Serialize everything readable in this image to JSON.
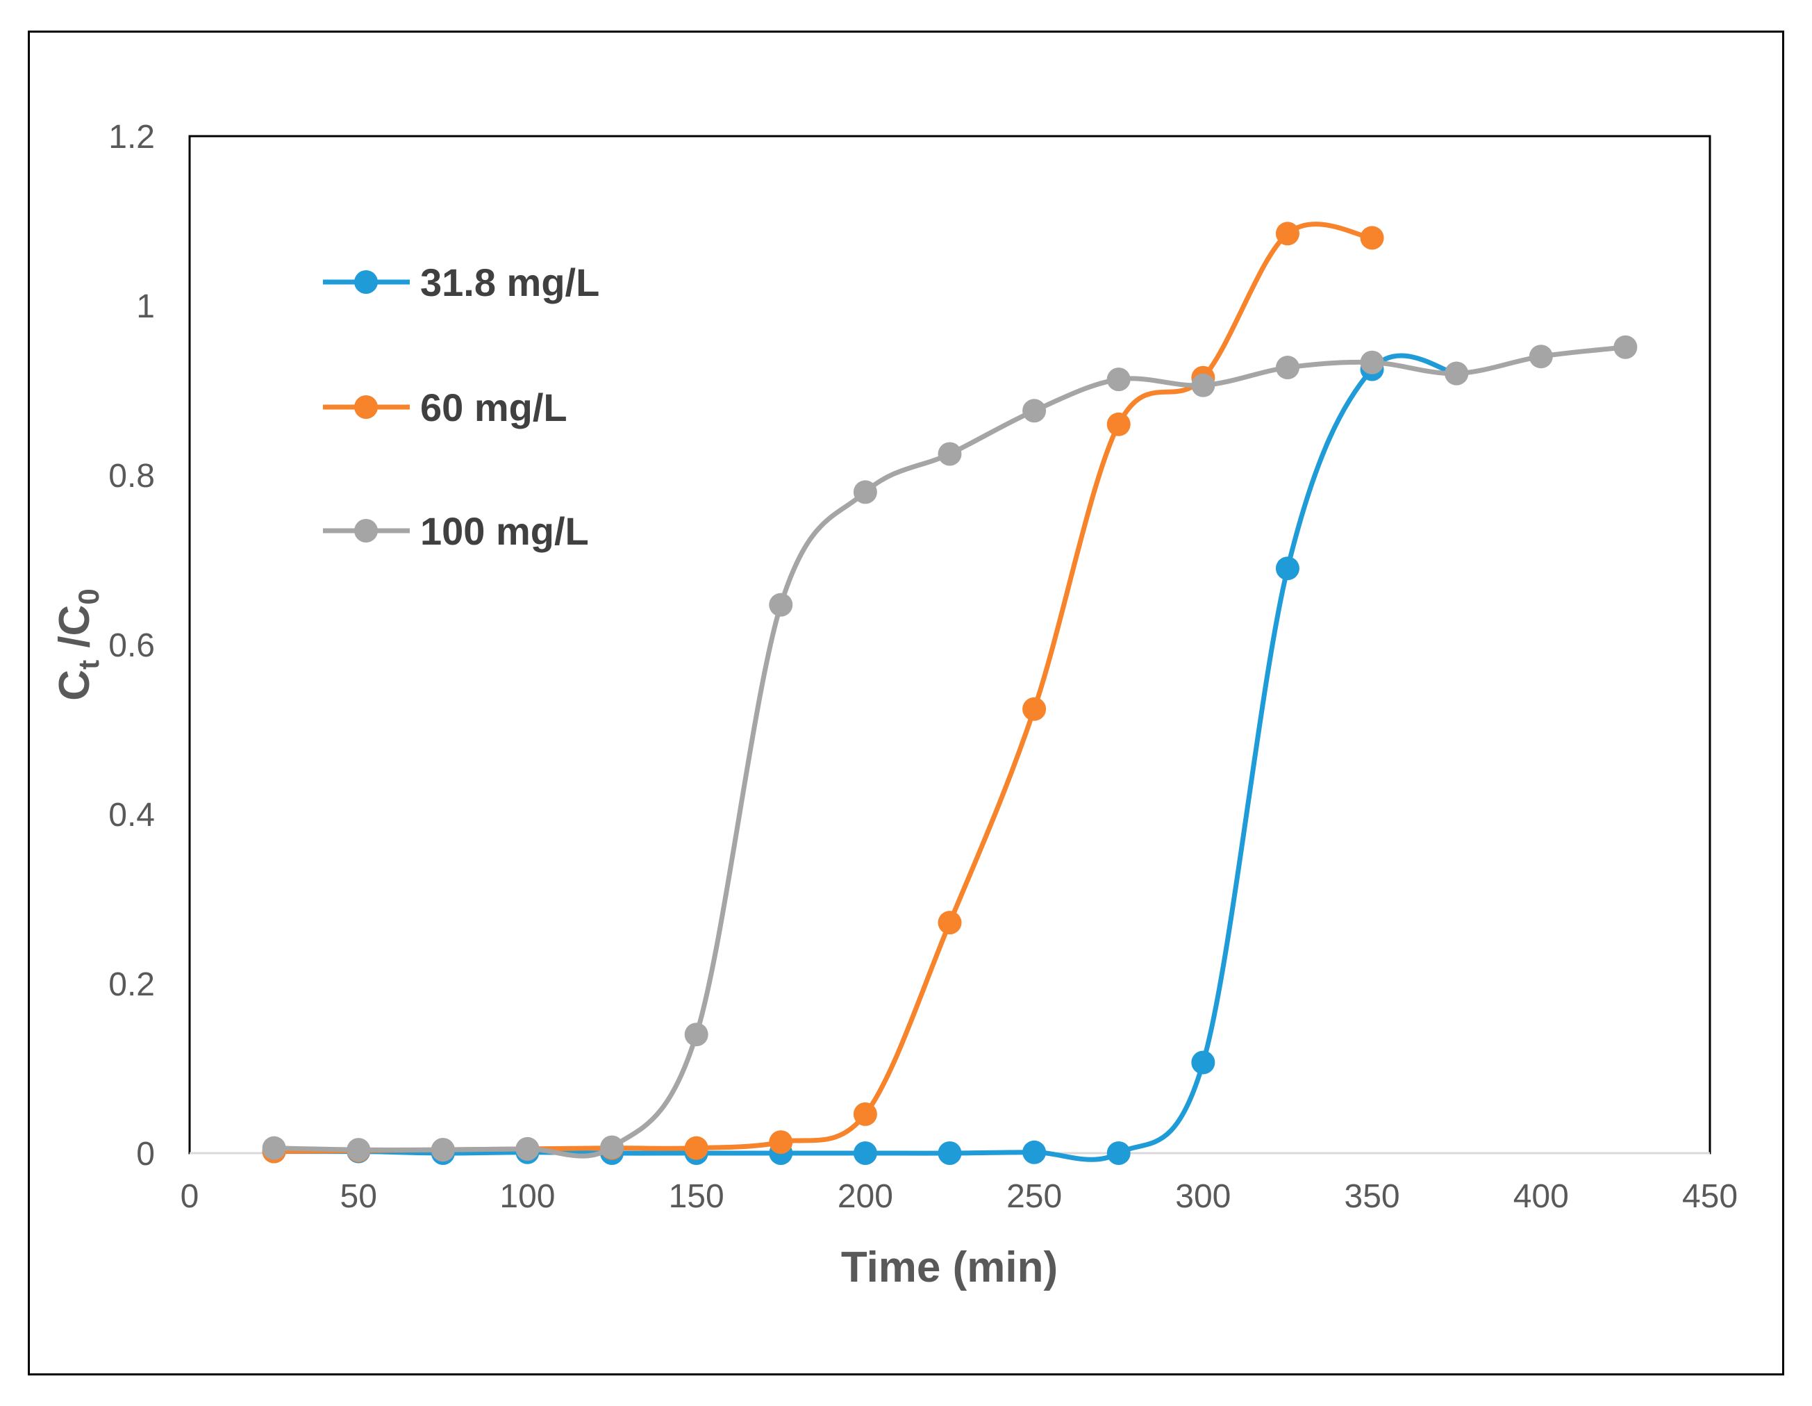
{
  "chart_data": {
    "type": "line",
    "title": "",
    "xlabel": "Time (min)",
    "ylabel_main": "C",
    "ylabel_sub1": "t",
    "ylabel_mid": " /C",
    "ylabel_sub2": "0",
    "xlim": [
      0,
      450
    ],
    "ylim": [
      0,
      1.2
    ],
    "x_ticks": [
      0,
      50,
      100,
      150,
      200,
      250,
      300,
      350,
      400,
      450
    ],
    "y_ticks": [
      0,
      0.2,
      0.4,
      0.6,
      0.8,
      1,
      1.2
    ],
    "x_tick_labels": [
      "0",
      "50",
      "100",
      "150",
      "200",
      "250",
      "300",
      "350",
      "400",
      "450"
    ],
    "y_tick_labels": [
      "0",
      "0.2",
      "0.4",
      "0.6",
      "0.8",
      "1",
      "1.2"
    ],
    "legend_position": "top-left",
    "series": [
      {
        "name": "31.8 mg/L",
        "color": "#1f9bd8",
        "x": [
          25,
          50,
          75,
          100,
          125,
          150,
          175,
          200,
          225,
          250,
          275,
          300,
          325,
          350,
          375
        ],
        "y": [
          0.002,
          0.002,
          0.0,
          0.001,
          0.0,
          0.0,
          0.0,
          0.0,
          0.0,
          0.001,
          0.0,
          0.107,
          0.69,
          0.925,
          0.92
        ]
      },
      {
        "name": "60 mg/L",
        "color": "#f7832a",
        "x": [
          25,
          50,
          75,
          100,
          125,
          150,
          175,
          200,
          225,
          250,
          275,
          300,
          325,
          350
        ],
        "y": [
          0.002,
          0.003,
          0.004,
          0.005,
          0.006,
          0.006,
          0.013,
          0.046,
          0.272,
          0.524,
          0.86,
          0.915,
          1.085,
          1.08
        ]
      },
      {
        "name": "100 mg/L",
        "color": "#a5a5a5",
        "x": [
          25,
          50,
          75,
          100,
          125,
          150,
          175,
          200,
          225,
          250,
          275,
          300,
          325,
          350,
          375,
          400,
          425
        ],
        "y": [
          0.006,
          0.004,
          0.004,
          0.005,
          0.007,
          0.14,
          0.647,
          0.78,
          0.825,
          0.876,
          0.913,
          0.906,
          0.927,
          0.933,
          0.92,
          0.94,
          0.951
        ]
      }
    ]
  }
}
